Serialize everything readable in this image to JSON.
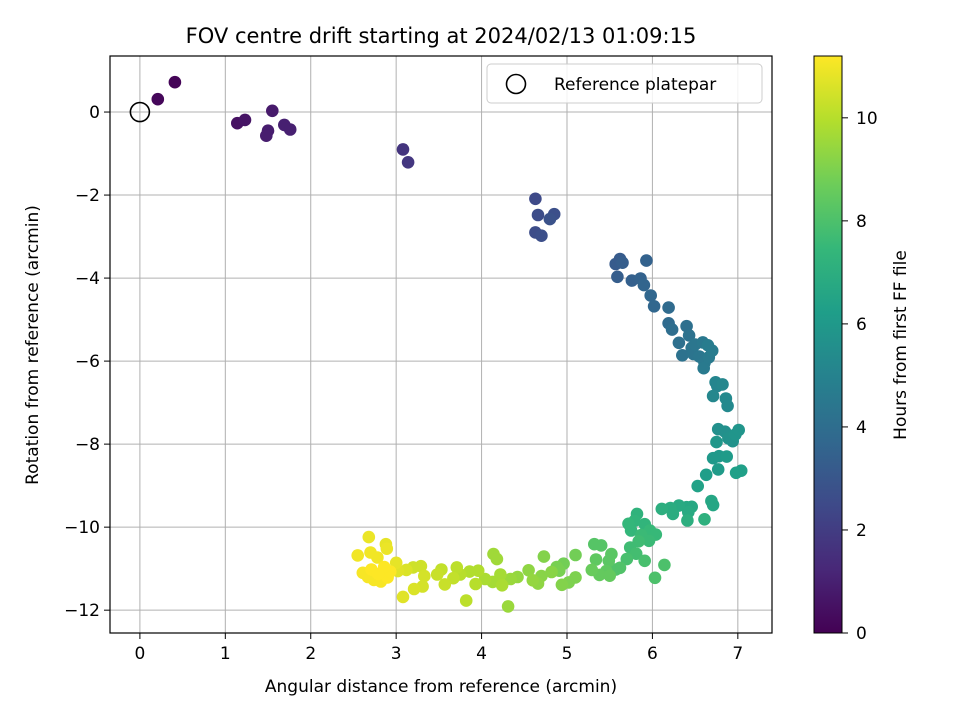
{
  "chart_data": {
    "type": "scatter",
    "title": "FOV centre drift starting at 2024/02/13 01:09:15",
    "xlabel": "Angular distance from reference (arcmin)",
    "ylabel": "Rotation from reference (arcmin)",
    "xlim": [
      -0.35,
      7.4
    ],
    "ylim": [
      -12.55,
      1.35
    ],
    "xticks": [
      0,
      1,
      2,
      3,
      4,
      5,
      6,
      7
    ],
    "yticks": [
      0,
      -2,
      -4,
      -6,
      -8,
      -10,
      -12
    ],
    "grid": true,
    "legend": {
      "placement": "top-right",
      "entries": [
        "Reference platepar"
      ]
    },
    "reference_point": {
      "x": 0,
      "y": 0,
      "label": "Reference platepar"
    },
    "colorbar": {
      "label": "Hours from first FF file",
      "colormap": "viridis",
      "range": [
        0,
        11.2
      ],
      "ticks": [
        0,
        2,
        4,
        6,
        8,
        10
      ]
    },
    "points": [
      [
        0.41,
        0.72,
        0.1
      ],
      [
        0.21,
        0.31,
        0.2
      ],
      [
        1.14,
        -0.27,
        0.5
      ],
      [
        1.23,
        -0.19,
        0.6
      ],
      [
        1.55,
        0.03,
        0.8
      ],
      [
        1.5,
        -0.45,
        0.9
      ],
      [
        1.48,
        -0.57,
        0.9
      ],
      [
        1.69,
        -0.31,
        1.0
      ],
      [
        1.76,
        -0.42,
        1.0
      ],
      [
        3.08,
        -0.9,
        1.7
      ],
      [
        3.14,
        -1.21,
        1.8
      ],
      [
        4.63,
        -2.09,
        2.5
      ],
      [
        4.66,
        -2.48,
        2.6
      ],
      [
        4.63,
        -2.9,
        2.6
      ],
      [
        4.7,
        -2.98,
        2.7
      ],
      [
        4.85,
        -2.46,
        2.7
      ],
      [
        4.8,
        -2.58,
        2.8
      ],
      [
        5.57,
        -3.66,
        3.2
      ],
      [
        5.62,
        -3.54,
        3.2
      ],
      [
        5.65,
        -3.63,
        3.3
      ],
      [
        5.59,
        -3.97,
        3.3
      ],
      [
        5.76,
        -4.06,
        3.4
      ],
      [
        5.86,
        -4.01,
        3.5
      ],
      [
        5.93,
        -3.58,
        3.5
      ],
      [
        5.9,
        -4.17,
        3.6
      ],
      [
        5.98,
        -4.42,
        3.7
      ],
      [
        6.02,
        -4.68,
        3.7
      ],
      [
        6.19,
        -4.71,
        3.9
      ],
      [
        6.19,
        -5.09,
        3.9
      ],
      [
        6.23,
        -5.24,
        4.0
      ],
      [
        6.31,
        -5.56,
        4.1
      ],
      [
        6.4,
        -5.16,
        4.1
      ],
      [
        6.35,
        -5.86,
        4.2
      ],
      [
        6.43,
        -5.38,
        4.2
      ],
      [
        6.46,
        -5.68,
        4.3
      ],
      [
        6.48,
        -5.83,
        4.3
      ],
      [
        6.5,
        -5.6,
        4.4
      ],
      [
        6.55,
        -5.89,
        4.4
      ],
      [
        6.59,
        -5.55,
        4.5
      ],
      [
        6.61,
        -6.04,
        4.5
      ],
      [
        6.6,
        -6.17,
        4.6
      ],
      [
        6.66,
        -5.91,
        4.6
      ],
      [
        6.65,
        -5.62,
        4.7
      ],
      [
        6.7,
        -5.75,
        4.7
      ],
      [
        6.74,
        -6.51,
        5.1
      ],
      [
        6.76,
        -6.6,
        5.1
      ],
      [
        6.82,
        -6.56,
        5.2
      ],
      [
        6.71,
        -6.84,
        5.2
      ],
      [
        6.86,
        -6.9,
        5.3
      ],
      [
        6.88,
        -7.08,
        5.3
      ],
      [
        6.77,
        -7.64,
        5.6
      ],
      [
        6.85,
        -7.7,
        5.6
      ],
      [
        6.89,
        -7.86,
        5.7
      ],
      [
        6.94,
        -7.93,
        5.7
      ],
      [
        6.97,
        -7.77,
        5.8
      ],
      [
        7.01,
        -7.66,
        5.8
      ],
      [
        6.75,
        -7.95,
        5.9
      ],
      [
        6.78,
        -8.29,
        6.0
      ],
      [
        6.71,
        -8.34,
        6.0
      ],
      [
        6.87,
        -8.3,
        6.1
      ],
      [
        6.77,
        -8.61,
        6.1
      ],
      [
        6.63,
        -8.74,
        6.2
      ],
      [
        6.98,
        -8.69,
        6.3
      ],
      [
        7.04,
        -8.64,
        6.3
      ],
      [
        6.53,
        -9.01,
        6.4
      ],
      [
        6.69,
        -9.37,
        6.6
      ],
      [
        6.71,
        -9.47,
        6.6
      ],
      [
        6.46,
        -9.51,
        6.7
      ],
      [
        6.4,
        -9.52,
        6.7
      ],
      [
        6.42,
        -9.64,
        6.8
      ],
      [
        6.31,
        -9.48,
        6.8
      ],
      [
        6.21,
        -9.54,
        6.9
      ],
      [
        6.24,
        -9.68,
        6.9
      ],
      [
        6.11,
        -9.56,
        7.0
      ],
      [
        6.41,
        -9.84,
        7.0
      ],
      [
        6.61,
        -9.81,
        7.1
      ],
      [
        5.82,
        -9.68,
        7.2
      ],
      [
        5.79,
        -9.85,
        7.3
      ],
      [
        5.91,
        -9.93,
        7.3
      ],
      [
        5.72,
        -9.92,
        7.4
      ],
      [
        5.75,
        -10.08,
        7.4
      ],
      [
        5.97,
        -10.08,
        7.5
      ],
      [
        6.04,
        -10.18,
        7.5
      ],
      [
        5.87,
        -10.19,
        7.6
      ],
      [
        5.96,
        -10.33,
        7.6
      ],
      [
        5.84,
        -10.34,
        7.7
      ],
      [
        5.74,
        -10.49,
        7.7
      ],
      [
        5.81,
        -10.64,
        7.8
      ],
      [
        5.7,
        -10.77,
        7.9
      ],
      [
        5.91,
        -10.81,
        7.9
      ],
      [
        6.14,
        -10.91,
        8.0
      ],
      [
        6.03,
        -11.22,
        8.0
      ],
      [
        5.62,
        -10.98,
        8.1
      ],
      [
        5.57,
        -11.02,
        8.1
      ],
      [
        5.4,
        -10.44,
        8.2
      ],
      [
        5.32,
        -10.41,
        8.2
      ],
      [
        5.52,
        -10.65,
        8.3
      ],
      [
        5.49,
        -10.81,
        8.3
      ],
      [
        5.34,
        -10.78,
        8.4
      ],
      [
        5.46,
        -11.06,
        8.4
      ],
      [
        5.38,
        -11.15,
        8.5
      ],
      [
        5.5,
        -11.17,
        8.5
      ],
      [
        5.29,
        -11.03,
        8.6
      ],
      [
        5.1,
        -10.67,
        8.8
      ],
      [
        4.96,
        -10.88,
        8.8
      ],
      [
        4.88,
        -10.96,
        8.9
      ],
      [
        4.91,
        -11.05,
        8.9
      ],
      [
        5.1,
        -11.21,
        9.0
      ],
      [
        5.02,
        -11.33,
        9.0
      ],
      [
        4.94,
        -11.39,
        9.1
      ],
      [
        4.73,
        -10.71,
        9.1
      ],
      [
        4.82,
        -11.08,
        9.2
      ],
      [
        4.7,
        -11.18,
        9.2
      ],
      [
        4.66,
        -11.36,
        9.3
      ],
      [
        4.55,
        -11.04,
        9.3
      ],
      [
        4.6,
        -11.28,
        9.4
      ],
      [
        4.42,
        -11.2,
        9.4
      ],
      [
        4.31,
        -11.91,
        9.5
      ],
      [
        4.34,
        -11.25,
        9.5
      ],
      [
        4.14,
        -10.65,
        9.6
      ],
      [
        4.18,
        -10.77,
        9.6
      ],
      [
        4.22,
        -11.14,
        9.7
      ],
      [
        4.13,
        -11.32,
        9.7
      ],
      [
        4.24,
        -11.4,
        9.8
      ],
      [
        4.04,
        -11.25,
        9.8
      ],
      [
        3.96,
        -11.05,
        9.9
      ],
      [
        3.86,
        -11.07,
        9.9
      ],
      [
        3.75,
        -11.14,
        10.0
      ],
      [
        3.93,
        -11.37,
        10.0
      ],
      [
        3.82,
        -11.77,
        10.1
      ],
      [
        3.71,
        -10.97,
        10.1
      ],
      [
        3.67,
        -11.23,
        10.2
      ],
      [
        3.53,
        -11.02,
        10.2
      ],
      [
        3.48,
        -11.14,
        10.3
      ],
      [
        3.57,
        -11.38,
        10.3
      ],
      [
        3.29,
        -10.94,
        10.4
      ],
      [
        3.2,
        -10.97,
        10.4
      ],
      [
        3.33,
        -11.18,
        10.5
      ],
      [
        3.31,
        -11.43,
        10.5
      ],
      [
        3.21,
        -11.49,
        10.6
      ],
      [
        3.12,
        -11.03,
        10.6
      ],
      [
        3.02,
        -11.06,
        10.7
      ],
      [
        3.08,
        -11.68,
        10.7
      ],
      [
        3.0,
        -10.86,
        10.8
      ],
      [
        2.88,
        -10.41,
        10.8
      ],
      [
        2.89,
        -10.52,
        10.9
      ],
      [
        2.68,
        -10.24,
        10.9
      ],
      [
        2.7,
        -10.61,
        11.0
      ],
      [
        2.55,
        -10.68,
        11.0
      ],
      [
        2.78,
        -10.73,
        11.0
      ],
      [
        2.61,
        -11.1,
        11.1
      ],
      [
        2.67,
        -11.2,
        11.1
      ],
      [
        2.74,
        -11.27,
        11.1
      ],
      [
        2.82,
        -11.31,
        11.1
      ],
      [
        2.9,
        -11.21,
        11.2
      ],
      [
        2.93,
        -11.07,
        11.2
      ],
      [
        2.71,
        -11.02,
        11.2
      ],
      [
        2.86,
        -10.96,
        11.2
      ],
      [
        2.79,
        -11.13,
        11.2
      ]
    ]
  }
}
